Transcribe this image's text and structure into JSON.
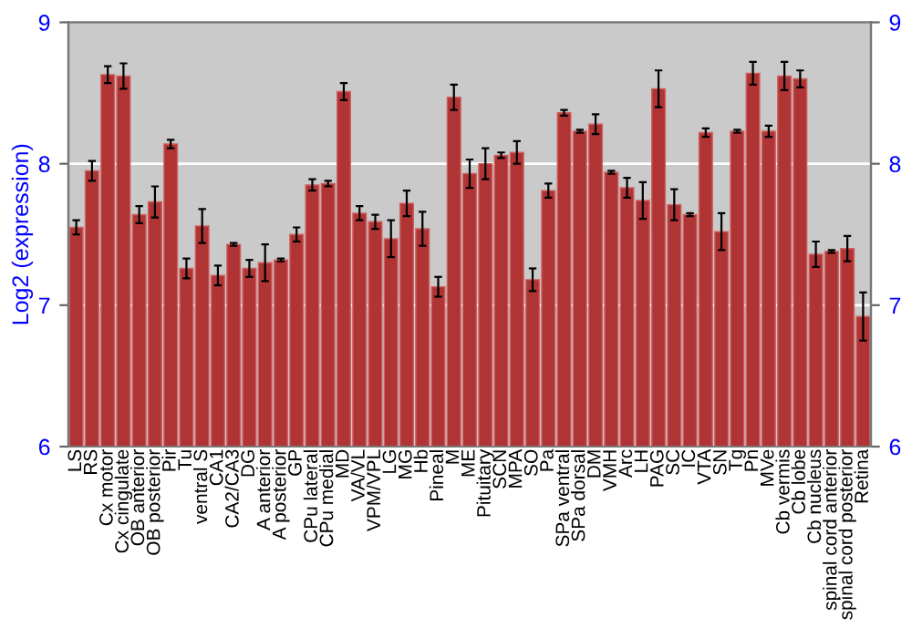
{
  "chart_data": {
    "type": "bar",
    "ylabel": "Log2 (expression)",
    "categories": [
      "LS",
      "RS",
      "Cx motor",
      "Cx cingulate",
      "OB anterior",
      "OB posterior",
      "Pir",
      "Tu",
      "ventral S",
      "CA1",
      "CA2/CA3",
      "DG",
      "A anterior",
      "A posterior",
      "GP",
      "CPu lateral",
      "CPu medial",
      "MD",
      "VA/VL",
      "VPM/VPL",
      "LG",
      "MG",
      "Hb",
      "Pineal",
      "M",
      "ME",
      "Pituitary",
      "SCN",
      "MPA",
      "SO",
      "Pa",
      "SPa ventral",
      "SPa dorsal",
      "DM",
      "VMH",
      "Arc",
      "LH",
      "PAG",
      "SC",
      "IC",
      "VTA",
      "SN",
      "Tg",
      "Pn",
      "MVe",
      "Cb vermis",
      "Cb lobe",
      "Cb nucleus",
      "spinal cord anterior",
      "spinal cord posterior",
      "Retina"
    ],
    "series": [
      {
        "color": "#b03434",
        "values": [
          7.55,
          7.95,
          8.63,
          8.62,
          7.64,
          7.73,
          8.14,
          7.26,
          7.56,
          7.21,
          7.43,
          7.26,
          7.3,
          7.32,
          7.5,
          7.85,
          7.86,
          8.51,
          7.65,
          7.59,
          7.47,
          7.72,
          7.54,
          7.13,
          8.47,
          7.93,
          8.0,
          8.06,
          8.08,
          7.18,
          7.81,
          8.36,
          8.23,
          8.28,
          7.94,
          7.83,
          7.74,
          8.53,
          7.71,
          7.64,
          8.22,
          7.52,
          8.23,
          8.64,
          8.23,
          8.62,
          8.6,
          7.36,
          7.38,
          7.4,
          6.92
        ],
        "errors": [
          0.05,
          0.07,
          0.06,
          0.09,
          0.06,
          0.11,
          0.03,
          0.07,
          0.12,
          0.07,
          0.01,
          0.06,
          0.13,
          0.01,
          0.05,
          0.04,
          0.02,
          0.06,
          0.05,
          0.05,
          0.13,
          0.09,
          0.12,
          0.07,
          0.09,
          0.1,
          0.11,
          0.02,
          0.08,
          0.08,
          0.05,
          0.02,
          0.01,
          0.07,
          0.01,
          0.07,
          0.13,
          0.13,
          0.11,
          0.01,
          0.03,
          0.13,
          0.01,
          0.08,
          0.04,
          0.1,
          0.06,
          0.09,
          0.01,
          0.09,
          0.17
        ]
      }
    ],
    "ylim": [
      6,
      9
    ],
    "yticks": [
      6,
      7,
      8,
      9
    ],
    "y2lim": [
      6,
      9
    ],
    "y2ticks": [
      6,
      7,
      8,
      9
    ],
    "grid": "y"
  }
}
